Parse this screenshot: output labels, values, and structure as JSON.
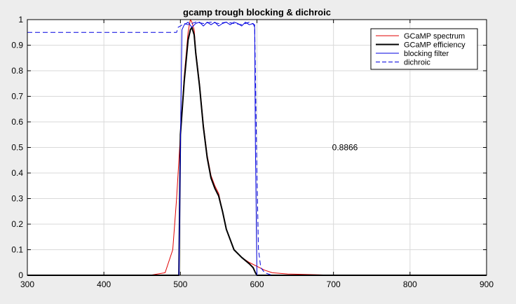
{
  "chart_data": {
    "type": "line",
    "title": "gcamp trough blocking & dichroic",
    "xlabel": "",
    "ylabel": "",
    "xlim": [
      300,
      900
    ],
    "ylim": [
      0,
      1
    ],
    "xticks": [
      300,
      400,
      500,
      600,
      700,
      800,
      900
    ],
    "yticks": [
      0,
      0.1,
      0.2,
      0.3,
      0.4,
      0.5,
      0.6,
      0.7,
      0.8,
      0.9,
      1
    ],
    "ytick_labels": [
      "0",
      "0.1",
      "0.2",
      "0.3",
      "0.4",
      "0.5",
      "0.6",
      "0.7",
      "0.8",
      "0.9",
      "1"
    ],
    "grid": true,
    "legend_position": "top-right",
    "annotation": {
      "text": "0.8866",
      "x": 700,
      "y": 0.5
    },
    "series": [
      {
        "name": "GCaMP spectrum",
        "color": "#e00000",
        "style": "solid",
        "width": 1,
        "x": [
          300,
          460,
          480,
          490,
          495,
          500,
          505,
          510,
          513,
          515,
          518,
          520,
          525,
          530,
          535,
          540,
          545,
          550,
          555,
          560,
          570,
          580,
          590,
          600,
          610,
          620,
          640,
          680,
          700,
          750,
          900
        ],
        "y": [
          0,
          0,
          0.01,
          0.1,
          0.3,
          0.55,
          0.78,
          0.95,
          1.0,
          0.99,
          0.96,
          0.88,
          0.75,
          0.59,
          0.47,
          0.39,
          0.35,
          0.32,
          0.25,
          0.18,
          0.1,
          0.07,
          0.05,
          0.035,
          0.02,
          0.01,
          0.005,
          0.002,
          0,
          0,
          0
        ]
      },
      {
        "name": "GCaMP efficiency",
        "color": "#000000",
        "style": "solid",
        "width": 2,
        "x": [
          300,
          498,
          500,
          505,
          510,
          513,
          515,
          518,
          520,
          525,
          530,
          535,
          540,
          545,
          550,
          555,
          560,
          570,
          580,
          590,
          595,
          598,
          600,
          900
        ],
        "y": [
          0,
          0,
          0.55,
          0.76,
          0.92,
          0.96,
          0.97,
          0.94,
          0.87,
          0.74,
          0.58,
          0.46,
          0.38,
          0.34,
          0.31,
          0.25,
          0.18,
          0.1,
          0.07,
          0.045,
          0.03,
          0.01,
          0,
          0
        ]
      },
      {
        "name": "blocking filter",
        "color": "#0000e0",
        "style": "solid",
        "width": 1,
        "x": [
          300,
          498,
          500,
          502,
          505,
          510,
          515,
          520,
          525,
          530,
          535,
          540,
          545,
          550,
          555,
          560,
          565,
          570,
          575,
          580,
          585,
          590,
          595,
          597,
          598,
          600,
          900
        ],
        "y": [
          0,
          0,
          0.5,
          0.96,
          0.98,
          0.99,
          0.97,
          0.985,
          0.99,
          0.975,
          0.99,
          0.98,
          0.99,
          0.975,
          0.985,
          0.99,
          0.98,
          0.99,
          0.985,
          0.975,
          0.99,
          0.98,
          0.985,
          0.97,
          0.5,
          0,
          0
        ]
      },
      {
        "name": "dichroic",
        "color": "#0000e0",
        "style": "dashed",
        "width": 1,
        "x": [
          300,
          495,
          497,
          500,
          505,
          510,
          520,
          530,
          540,
          550,
          560,
          570,
          580,
          590,
          597,
          600,
          602,
          605,
          610,
          620,
          900
        ],
        "y": [
          0.95,
          0.95,
          0.97,
          0.975,
          0.985,
          0.98,
          0.99,
          0.985,
          0.99,
          0.985,
          0.99,
          0.985,
          0.98,
          0.99,
          0.98,
          0.4,
          0.1,
          0.03,
          0.01,
          0,
          0
        ]
      }
    ]
  }
}
